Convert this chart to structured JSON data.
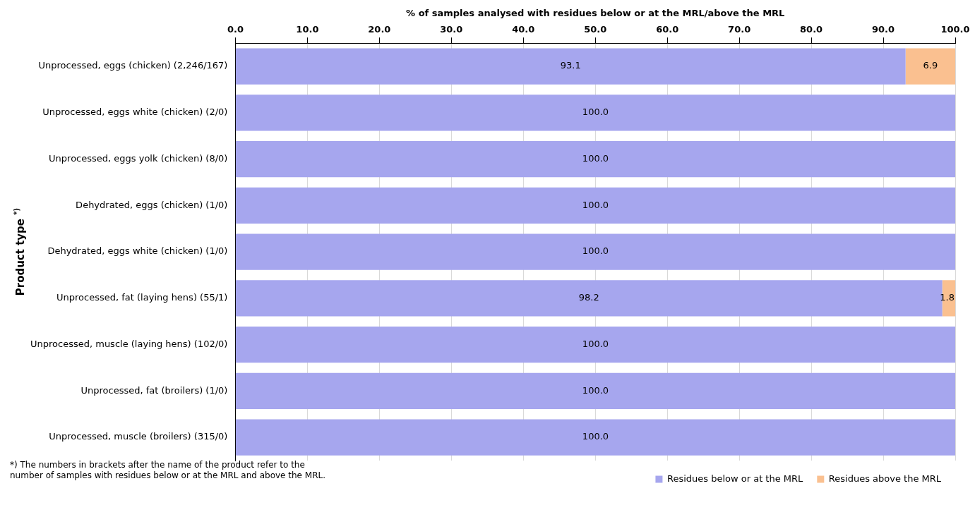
{
  "chart_data": {
    "type": "bar",
    "orientation": "horizontal",
    "stacked": true,
    "xlabel": "% of samples analysed with residues below or at the MRL/above the MRL",
    "ylabel": "Product type $^{*)}$",
    "categories": [
      "Unprocessed, eggs (chicken) (2,246/167)",
      "Unprocessed, eggs white (chicken) (2/0)",
      "Unprocessed, eggs yolk (chicken) (8/0)",
      "Dehydrated, eggs (chicken) (1/0)",
      "Dehydrated, eggs white (chicken) (1/0)",
      "Unprocessed, fat (laying hens) (55/1)",
      "Unprocessed, muscle (laying hens) (102/0)",
      "Unprocessed, fat (broilers) (1/0)",
      "Unprocessed, muscle (broilers) (315/0)"
    ],
    "series": [
      {
        "name": "Residues below or at the MRL",
        "color": "#a6a6ee",
        "values": [
          93.1,
          100,
          100,
          100,
          100,
          98.2,
          100,
          100,
          100
        ],
        "value_labels": [
          "93.1",
          "100.0",
          "100.0",
          "100.0",
          "100.0",
          "98.2",
          "100.0",
          "100.0",
          "100.0"
        ]
      },
      {
        "name": "Residues above the MRL",
        "color": "#fac090",
        "values": [
          6.9,
          0,
          0,
          0,
          0,
          1.8,
          0,
          0,
          0
        ],
        "value_labels": [
          "6.9",
          null,
          null,
          null,
          null,
          "1.8",
          null,
          null,
          null
        ]
      }
    ],
    "xlim": [
      0,
      100
    ],
    "xticks": [
      {
        "value": 0,
        "label": "0.0"
      },
      {
        "value": 10,
        "label": "10.0"
      },
      {
        "value": 20,
        "label": "20.0"
      },
      {
        "value": 30,
        "label": "30.0"
      },
      {
        "value": 40,
        "label": "40.0"
      },
      {
        "value": 50,
        "label": "50.0"
      },
      {
        "value": 60,
        "label": "60.0"
      },
      {
        "value": 70,
        "label": "70.0"
      },
      {
        "value": 80,
        "label": "80.0"
      },
      {
        "value": 90,
        "label": "90.0"
      },
      {
        "value": 100,
        "label": "100.0"
      }
    ],
    "grid": "x",
    "legend": "bottom right",
    "annotations": [
      "*) The numbers in brackets after the name of the product refer to the number of samples with residues below or at the MRL and above the MRL."
    ]
  }
}
